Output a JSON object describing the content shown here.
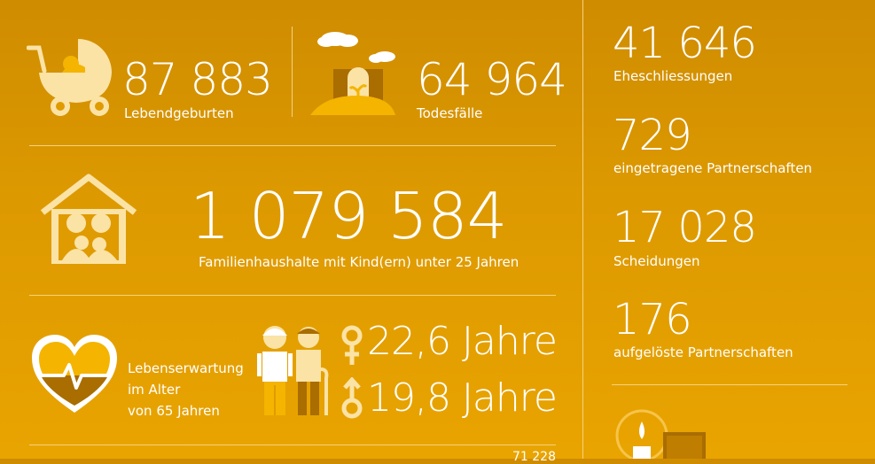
{
  "stats": {
    "births": {
      "value": "87 883",
      "label": "Lebendgeburten"
    },
    "deaths": {
      "value": "64 964",
      "label": "Todesfälle"
    },
    "households": {
      "value": "1 079 584",
      "label": "Familienhaushalte mit Kind(ern) unter 25 Jahren"
    },
    "life_expectancy": {
      "label_lines": [
        "Lebenserwartung",
        "im Alter",
        "von 65 Jahren"
      ],
      "female": "22,6 Jahre",
      "male": "19,8 Jahre"
    }
  },
  "side": [
    {
      "value": "41 646",
      "label": "Eheschliessungen"
    },
    {
      "value": "729",
      "label": "eingetragene Partnerschaften"
    },
    {
      "value": "17 028",
      "label": "Scheidungen"
    },
    {
      "value": "176",
      "label": "aufgelöste Partnerschaften"
    }
  ],
  "bottom_partial": {
    "value": "71 228"
  },
  "icons": [
    "pram-icon",
    "grave-icon",
    "family-house-icon",
    "heart-pulse-icon",
    "elderly-couple-icon",
    "female-symbol-icon",
    "male-symbol-icon",
    "candle-book-icon"
  ],
  "colors": {
    "background": "#d99500",
    "icon_fill": "#fbe3a6",
    "icon_dark": "#a96d00",
    "text": "#ffffff",
    "divider": "#f6d27a"
  }
}
